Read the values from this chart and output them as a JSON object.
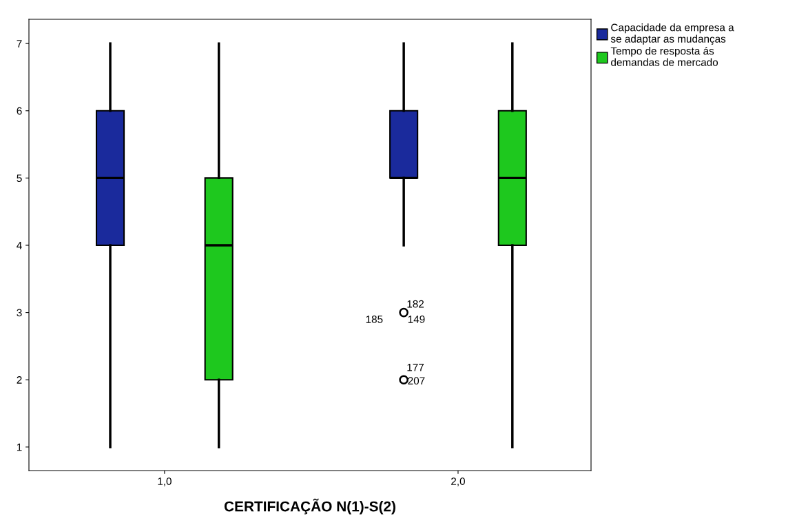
{
  "chart_data": {
    "type": "box",
    "xlabel": "CERTIFICAÇÃO N(1)-S(2)",
    "categories": [
      "1,0",
      "2,0"
    ],
    "ylim": [
      0.65,
      7.36
    ],
    "yticks": [
      1,
      2,
      3,
      4,
      5,
      6,
      7
    ],
    "grid": false,
    "legend": "top right",
    "series": [
      {
        "name": "Capacidade da empresa a\nse adaptar as mudanças",
        "color": "#1a2a9c",
        "boxes": [
          {
            "low": 1,
            "q1": 4,
            "median": 5,
            "q3": 6,
            "high": 7
          },
          {
            "low": 4,
            "q1": 5,
            "median": 5,
            "q3": 6,
            "high": 7,
            "outliers": [
              3,
              2
            ]
          }
        ]
      },
      {
        "name": "Tempo de resposta ás\ndemandas de mercado",
        "color": "#1ec81e",
        "boxes": [
          {
            "low": 1,
            "q1": 2,
            "median": 4,
            "q3": 5,
            "high": 7
          },
          {
            "low": 1,
            "q1": 4,
            "median": 5,
            "q3": 6,
            "high": 7
          }
        ]
      }
    ],
    "annotations": [
      "182",
      "185",
      "149",
      "177",
      "207"
    ]
  }
}
